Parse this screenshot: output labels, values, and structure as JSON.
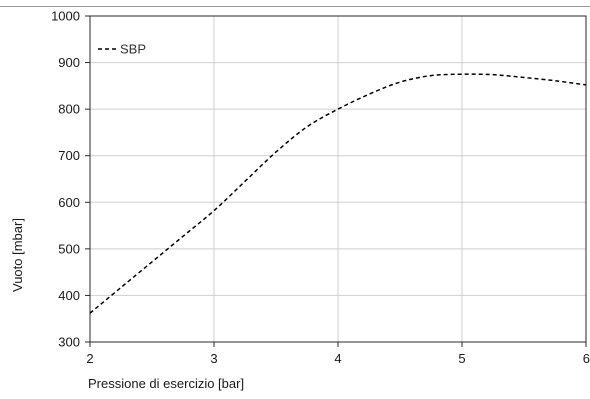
{
  "chart_data": {
    "type": "line",
    "xlabel": "Pressione di esercizio [bar]",
    "ylabel": "Vuoto [mbar]",
    "xlim": [
      2,
      6
    ],
    "ylim": [
      300,
      1000
    ],
    "x_ticks": [
      "2",
      "3",
      "4",
      "5",
      "6"
    ],
    "y_ticks": [
      "300",
      "400",
      "500",
      "600",
      "700",
      "800",
      "900",
      "1000"
    ],
    "grid": true,
    "legend_position": "top-left",
    "series": [
      {
        "name": "SBP",
        "line_style": "dashed",
        "color": "#000000",
        "x": [
          2.0,
          2.25,
          2.5,
          2.75,
          3.0,
          3.25,
          3.5,
          3.75,
          4.0,
          4.25,
          4.5,
          4.75,
          5.0,
          5.25,
          5.5,
          5.75,
          6.0
        ],
        "y": [
          362,
          417,
          472,
          527,
          582,
          645,
          708,
          762,
          800,
          832,
          858,
          872,
          875,
          874,
          868,
          861,
          852
        ]
      }
    ]
  }
}
